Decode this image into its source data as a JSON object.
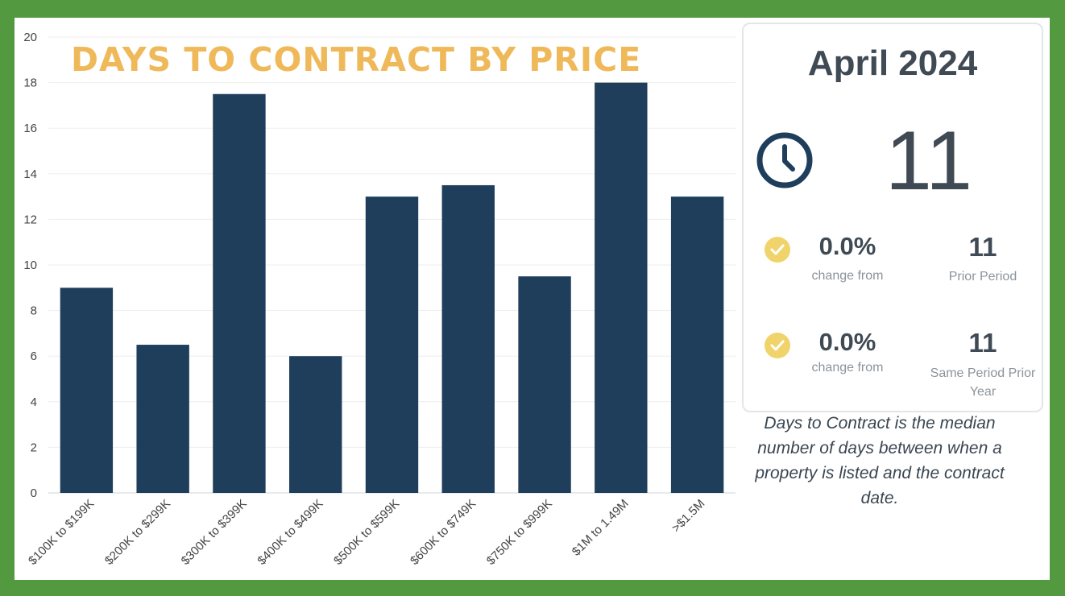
{
  "chart_data": {
    "type": "bar",
    "title": "DAYS TO CONTRACT BY PRICE",
    "categories": [
      "$100K to $199K",
      "$200K to $299K",
      "$300K to $399K",
      "$400K to $499K",
      "$500K to $599K",
      "$600K to $749K",
      "$750K to $999K",
      "$1M to 1.49M",
      ">$1.5M"
    ],
    "values": [
      9,
      6.5,
      17.5,
      6,
      13,
      13.5,
      9.5,
      18,
      13
    ],
    "ylim": [
      0,
      20
    ],
    "yticks": [
      0,
      2,
      4,
      6,
      8,
      10,
      12,
      14,
      16,
      18,
      20
    ],
    "xlabel": "",
    "ylabel": "",
    "grid": true,
    "bar_color": "#1e3e5c"
  },
  "card": {
    "period": "April 2024",
    "icon": "clock-icon",
    "value": "11",
    "comparisons": [
      {
        "percent": "0.0%",
        "change_label": "change from",
        "value": "11",
        "label": "Prior Period"
      },
      {
        "percent": "0.0%",
        "change_label": "change from",
        "value": "11",
        "label": "Same Period Prior Year"
      }
    ],
    "check_icon_color": "#f1d36b",
    "text_color": "#3f4a54"
  },
  "description": "Days to Contract is the median number of days between when a property is listed and the contract date.",
  "colors": {
    "frame": "#529940",
    "title": "#efb95a",
    "bars": "#1e3e5c"
  }
}
